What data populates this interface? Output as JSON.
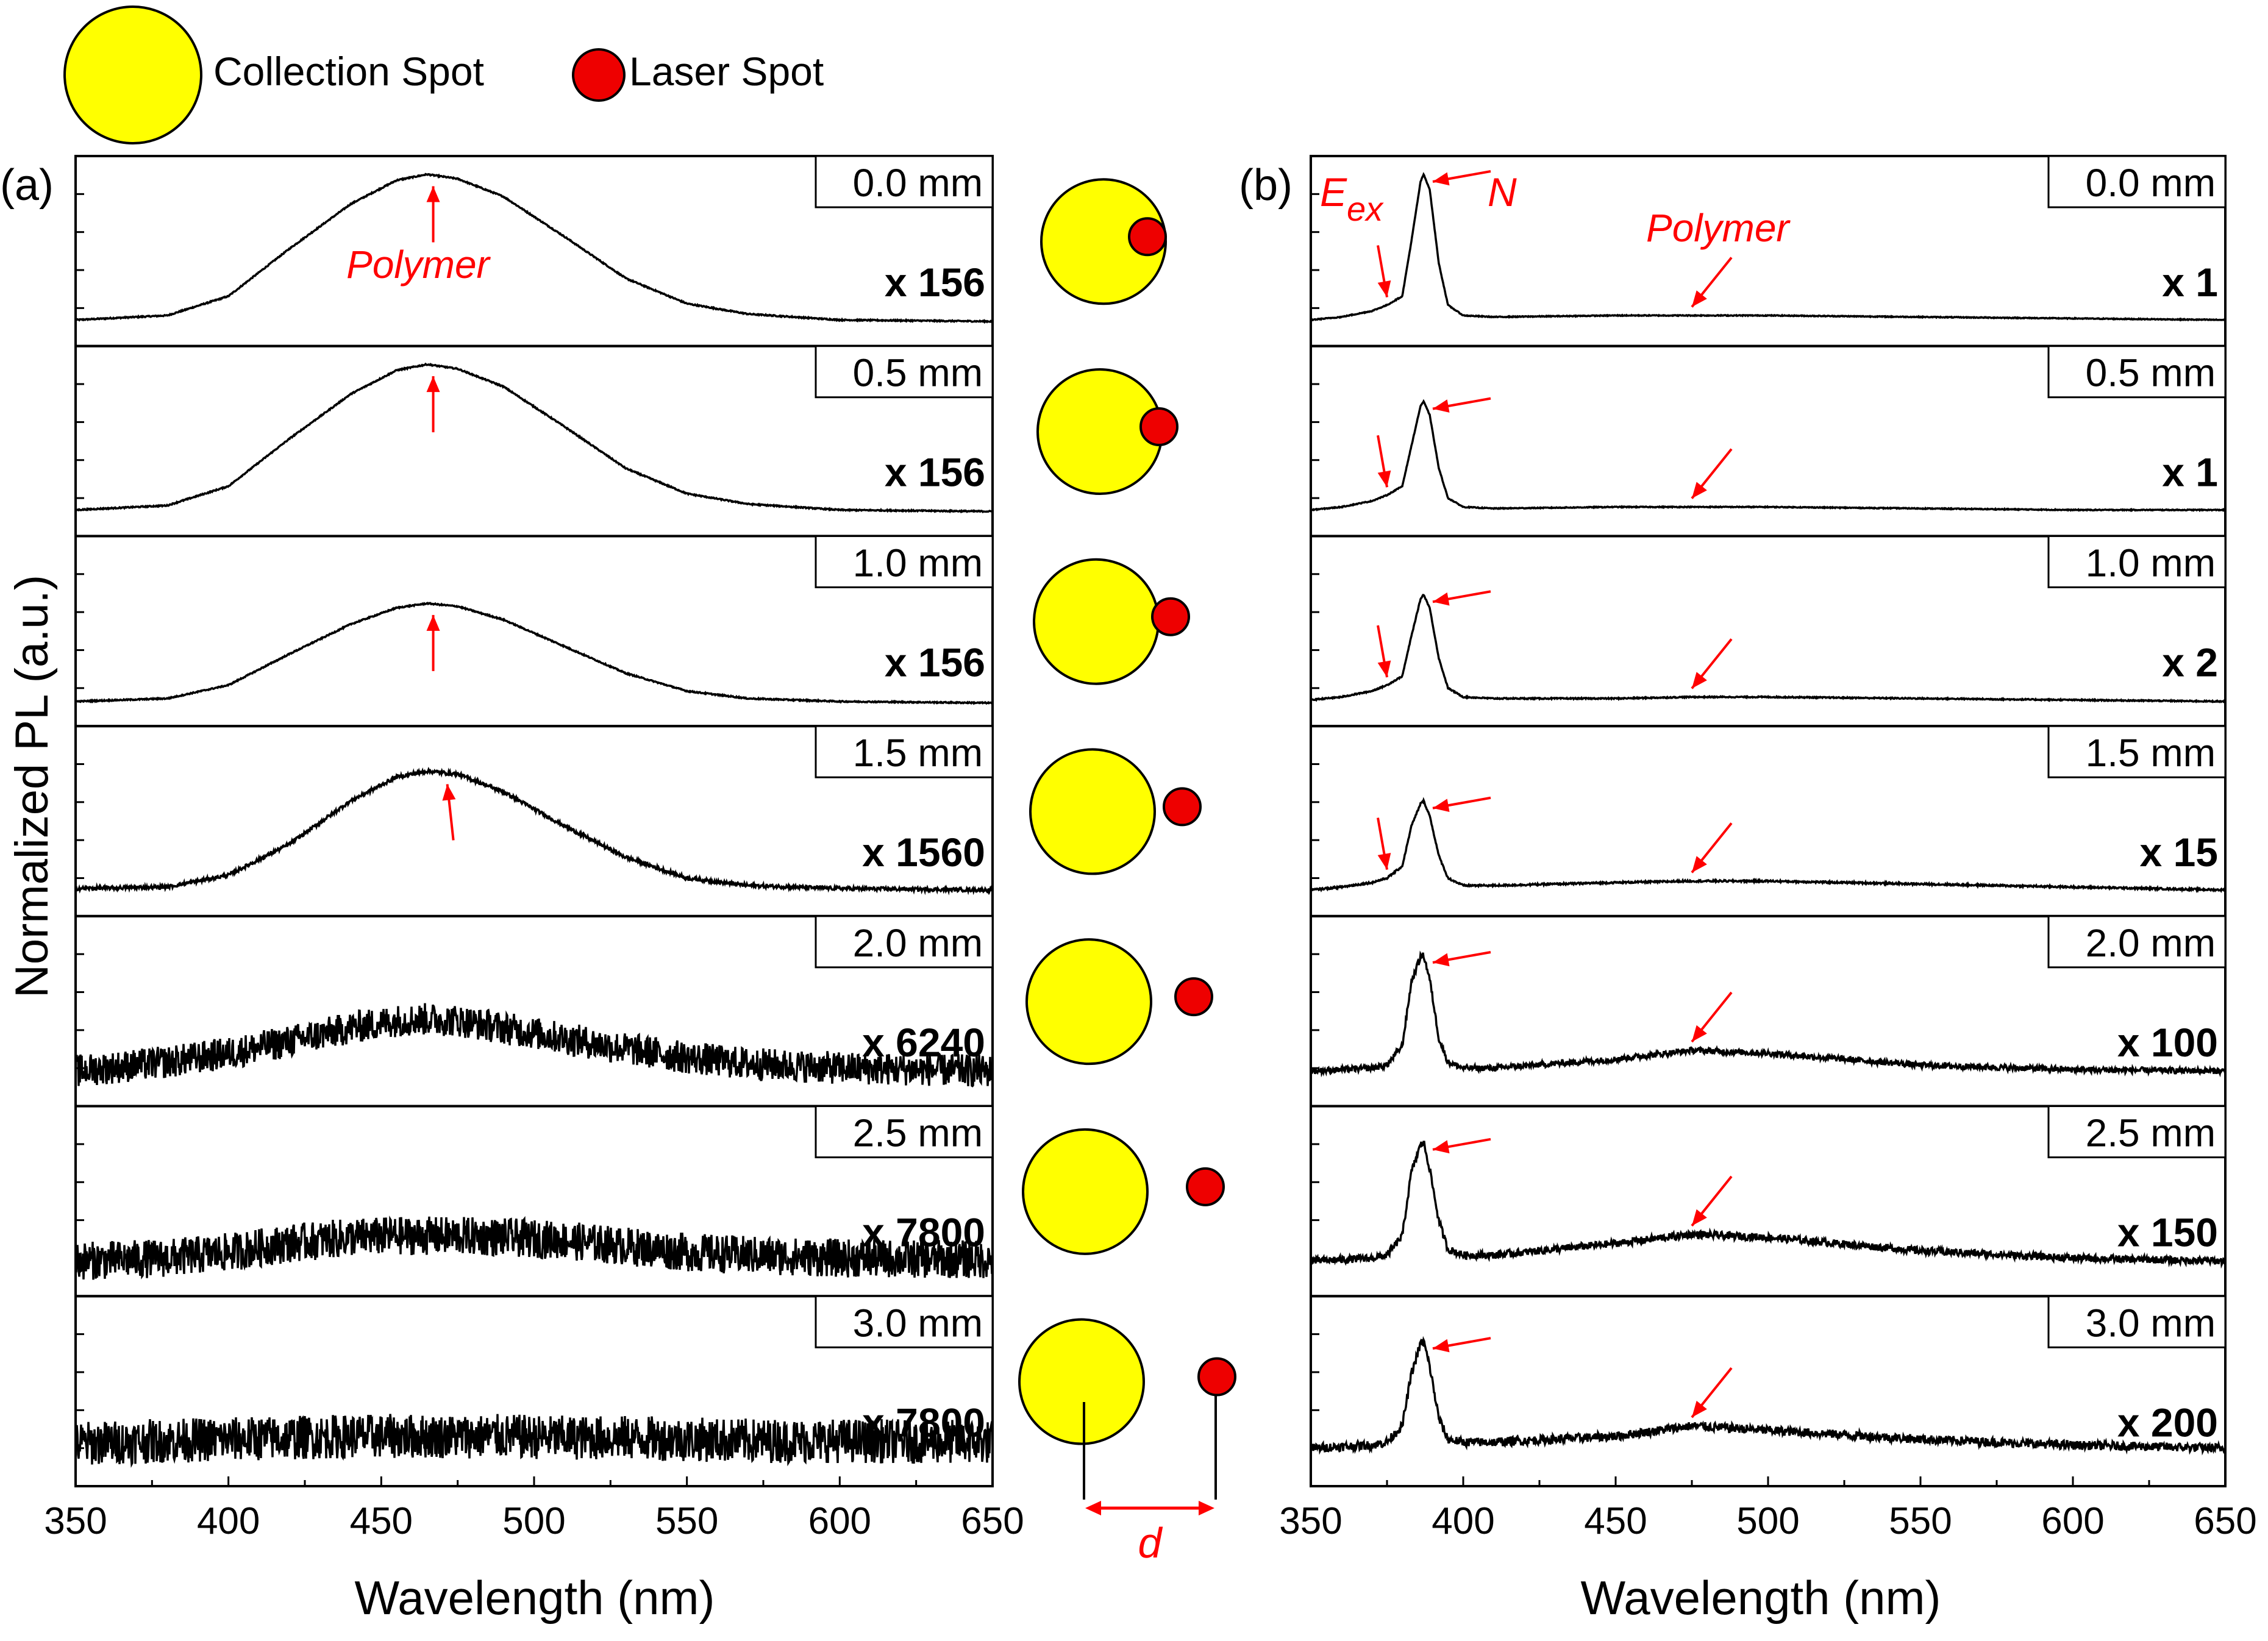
{
  "legend": [
    {
      "label": "Collection Spot",
      "color": "#ffff00"
    },
    {
      "label": "Laser Spot",
      "color": "#ee0000"
    }
  ],
  "ylabel": "Normalized PL (a.u.)",
  "annotation_color": "#ff0000",
  "distance_label": "d",
  "chart_data": [
    {
      "type": "line",
      "panel_label": "(a)",
      "xlabel": "Wavelength (nm)",
      "xlim": [
        350,
        650
      ],
      "xticks": [
        350,
        400,
        450,
        500,
        550,
        600,
        650
      ],
      "peak_annotation": "Polymer",
      "series": [
        {
          "distance": "0.0 mm",
          "scale": "x 156",
          "x": [
            350,
            380,
            400,
            420,
            440,
            455,
            465,
            475,
            490,
            510,
            530,
            550,
            570,
            600,
            650
          ],
          "y": [
            0.02,
            0.05,
            0.18,
            0.5,
            0.8,
            0.96,
            1.0,
            0.97,
            0.85,
            0.58,
            0.3,
            0.13,
            0.06,
            0.02,
            0.01
          ]
        },
        {
          "distance": "0.5 mm",
          "scale": "x 156",
          "x": [
            350,
            380,
            400,
            420,
            440,
            455,
            465,
            475,
            490,
            510,
            530,
            550,
            570,
            600,
            650
          ],
          "y": [
            0.02,
            0.05,
            0.18,
            0.5,
            0.8,
            0.96,
            1.0,
            0.97,
            0.85,
            0.58,
            0.3,
            0.13,
            0.06,
            0.02,
            0.01
          ]
        },
        {
          "distance": "1.0 mm",
          "scale": "x 156",
          "x": [
            350,
            380,
            400,
            420,
            440,
            455,
            465,
            475,
            490,
            510,
            530,
            550,
            570,
            600,
            650
          ],
          "y": [
            0.01,
            0.03,
            0.12,
            0.33,
            0.53,
            0.64,
            0.67,
            0.65,
            0.56,
            0.38,
            0.2,
            0.08,
            0.03,
            0.01,
            0.0
          ]
        },
        {
          "distance": "1.5 mm",
          "scale": "x 1560",
          "x": [
            350,
            380,
            400,
            420,
            440,
            455,
            465,
            475,
            490,
            510,
            530,
            550,
            570,
            600,
            650
          ],
          "y": [
            0.03,
            0.04,
            0.12,
            0.33,
            0.62,
            0.78,
            0.82,
            0.8,
            0.68,
            0.45,
            0.24,
            0.1,
            0.05,
            0.03,
            0.02
          ]
        },
        {
          "distance": "2.0 mm",
          "scale": "x 6240",
          "x": [
            350,
            380,
            400,
            420,
            440,
            455,
            465,
            475,
            490,
            510,
            530,
            550,
            570,
            600,
            650
          ],
          "y": [
            0.08,
            0.14,
            0.2,
            0.28,
            0.37,
            0.42,
            0.43,
            0.42,
            0.37,
            0.3,
            0.23,
            0.17,
            0.13,
            0.1,
            0.08
          ]
        },
        {
          "distance": "2.5 mm",
          "scale": "x 7800",
          "x": [
            350,
            380,
            400,
            420,
            440,
            455,
            465,
            475,
            490,
            510,
            530,
            550,
            570,
            600,
            650
          ],
          "y": [
            0.08,
            0.1,
            0.14,
            0.2,
            0.24,
            0.25,
            0.25,
            0.25,
            0.24,
            0.22,
            0.18,
            0.14,
            0.12,
            0.1,
            0.09
          ]
        },
        {
          "distance": "3.0 mm",
          "scale": "x 7800",
          "x": [
            350,
            380,
            400,
            420,
            440,
            455,
            465,
            475,
            490,
            510,
            530,
            550,
            570,
            600,
            650
          ],
          "y": [
            0.13,
            0.15,
            0.16,
            0.17,
            0.18,
            0.18,
            0.18,
            0.18,
            0.18,
            0.17,
            0.17,
            0.16,
            0.15,
            0.15,
            0.14
          ]
        }
      ]
    },
    {
      "type": "line",
      "panel_label": "(b)",
      "xlabel": "Wavelength (nm)",
      "xlim": [
        350,
        650
      ],
      "xticks": [
        350,
        400,
        450,
        500,
        550,
        600,
        650
      ],
      "exciton_label": "E",
      "exciton_sub": "ex",
      "n_label": "N",
      "peak_annotation": "Polymer",
      "series": [
        {
          "distance": "0.0 mm",
          "scale": "x 1",
          "x": [
            350,
            360,
            370,
            375,
            380,
            383,
            386,
            387,
            389,
            392,
            395,
            400,
            410,
            450,
            475,
            500,
            550,
            600,
            650
          ],
          "y": [
            0.02,
            0.04,
            0.08,
            0.12,
            0.18,
            0.55,
            0.95,
            1.0,
            0.9,
            0.4,
            0.12,
            0.05,
            0.04,
            0.05,
            0.05,
            0.05,
            0.04,
            0.03,
            0.02
          ]
        },
        {
          "distance": "0.5 mm",
          "scale": "x 1",
          "x": [
            350,
            360,
            370,
            375,
            380,
            383,
            386,
            387,
            389,
            392,
            395,
            400,
            410,
            450,
            475,
            500,
            550,
            600,
            650
          ],
          "y": [
            0.02,
            0.04,
            0.08,
            0.12,
            0.18,
            0.45,
            0.72,
            0.75,
            0.66,
            0.3,
            0.1,
            0.04,
            0.03,
            0.04,
            0.04,
            0.04,
            0.03,
            0.02,
            0.02
          ]
        },
        {
          "distance": "1.0 mm",
          "scale": "x 2",
          "x": [
            350,
            360,
            370,
            375,
            380,
            383,
            386,
            387,
            389,
            392,
            395,
            400,
            410,
            450,
            475,
            500,
            550,
            600,
            650
          ],
          "y": [
            0.02,
            0.04,
            0.08,
            0.12,
            0.18,
            0.45,
            0.7,
            0.73,
            0.64,
            0.3,
            0.1,
            0.04,
            0.03,
            0.03,
            0.04,
            0.04,
            0.03,
            0.02,
            0.01
          ]
        },
        {
          "distance": "1.5 mm",
          "scale": "x 15",
          "x": [
            350,
            360,
            370,
            375,
            380,
            383,
            386,
            387,
            389,
            392,
            395,
            400,
            410,
            450,
            475,
            500,
            550,
            600,
            650
          ],
          "y": [
            0.02,
            0.04,
            0.07,
            0.1,
            0.18,
            0.45,
            0.6,
            0.62,
            0.52,
            0.25,
            0.1,
            0.05,
            0.05,
            0.07,
            0.08,
            0.08,
            0.06,
            0.04,
            0.02
          ]
        },
        {
          "distance": "2.0 mm",
          "scale": "x 100",
          "x": [
            350,
            360,
            370,
            375,
            380,
            383,
            386,
            387,
            389,
            392,
            395,
            400,
            410,
            450,
            475,
            500,
            550,
            600,
            650
          ],
          "y": [
            0.08,
            0.09,
            0.1,
            0.12,
            0.25,
            0.68,
            0.85,
            0.86,
            0.7,
            0.3,
            0.14,
            0.1,
            0.1,
            0.16,
            0.22,
            0.2,
            0.12,
            0.09,
            0.08
          ]
        },
        {
          "distance": "2.5 mm",
          "scale": "x 150",
          "x": [
            350,
            360,
            370,
            375,
            380,
            383,
            386,
            387,
            389,
            392,
            395,
            400,
            410,
            450,
            475,
            500,
            550,
            600,
            650
          ],
          "y": [
            0.08,
            0.09,
            0.1,
            0.12,
            0.25,
            0.68,
            0.86,
            0.88,
            0.7,
            0.35,
            0.16,
            0.12,
            0.12,
            0.2,
            0.26,
            0.24,
            0.15,
            0.1,
            0.08
          ]
        },
        {
          "distance": "3.0 mm",
          "scale": "x 200",
          "x": [
            350,
            360,
            370,
            375,
            380,
            383,
            386,
            387,
            389,
            392,
            395,
            400,
            410,
            450,
            475,
            500,
            550,
            600,
            650
          ],
          "y": [
            0.1,
            0.11,
            0.12,
            0.14,
            0.25,
            0.6,
            0.8,
            0.82,
            0.65,
            0.3,
            0.16,
            0.14,
            0.14,
            0.18,
            0.25,
            0.22,
            0.16,
            0.12,
            0.1
          ]
        }
      ]
    }
  ],
  "spot_offsets": [
    0.0,
    0.5,
    1.0,
    1.5,
    2.0,
    2.5,
    3.0
  ]
}
